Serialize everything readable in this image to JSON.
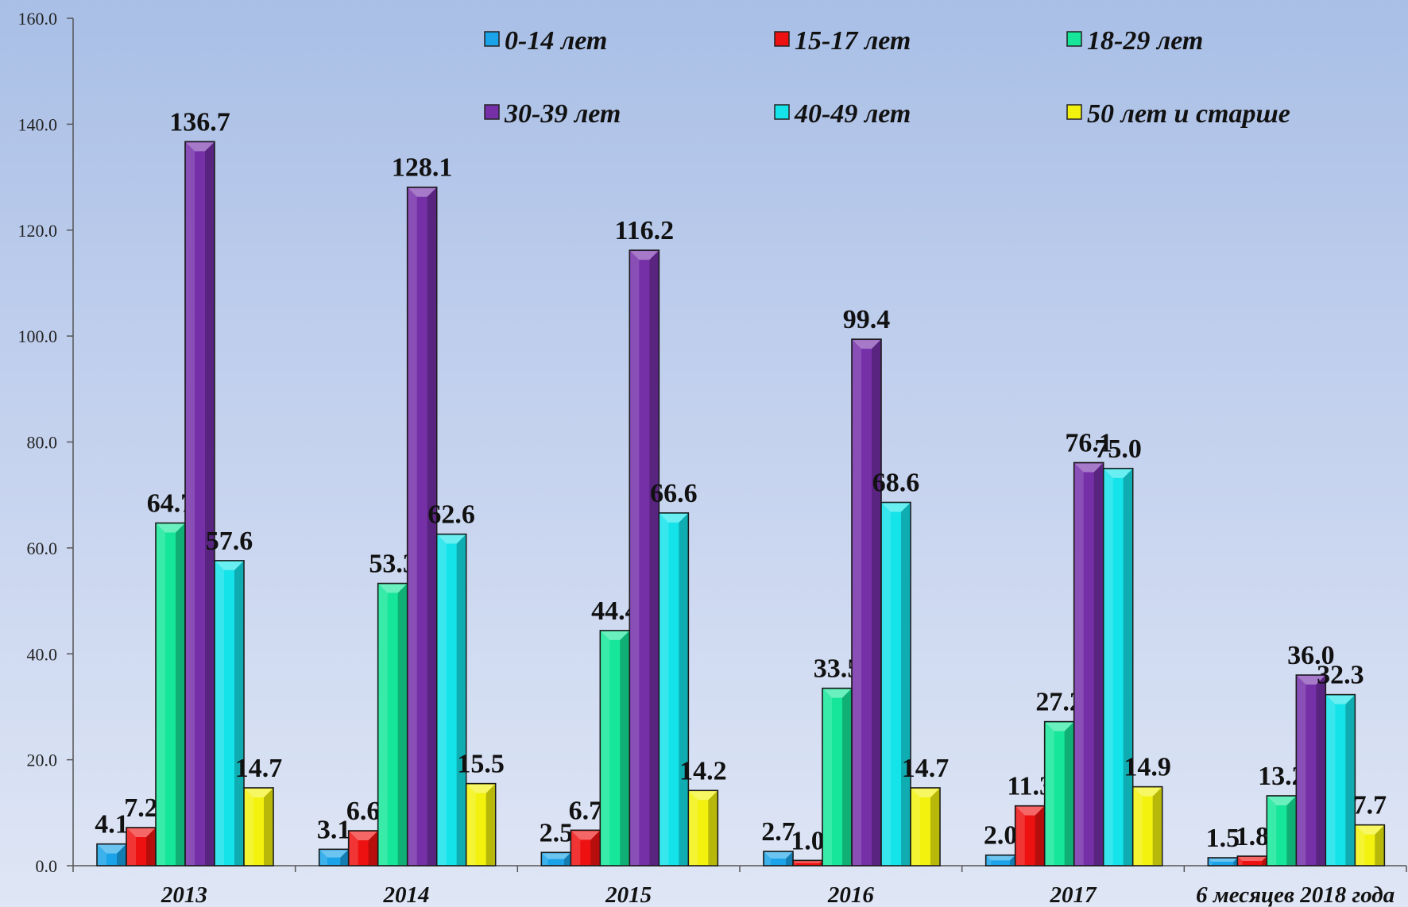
{
  "chart_data": {
    "type": "bar",
    "categories": [
      "2013",
      "2014",
      "2015",
      "2016",
      "2017",
      "6 месяцев 2018 года"
    ],
    "series": [
      {
        "name": "0-14 лет",
        "color": "#1aa3e8",
        "values": [
          4.1,
          3.1,
          2.5,
          2.7,
          2.0,
          1.5
        ]
      },
      {
        "name": "15-17 лет",
        "color": "#ee1111",
        "values": [
          7.2,
          6.6,
          6.7,
          1.0,
          11.3,
          1.8
        ]
      },
      {
        "name": "18-29 лет",
        "color": "#15e69a",
        "values": [
          64.7,
          53.3,
          44.4,
          33.5,
          27.2,
          13.2
        ]
      },
      {
        "name": "30-39 лет",
        "color": "#7530a8",
        "values": [
          136.7,
          128.1,
          116.2,
          99.4,
          76.1,
          36.0
        ]
      },
      {
        "name": "40-49 лет",
        "color": "#14e3ea",
        "values": [
          57.6,
          62.6,
          66.6,
          68.6,
          75.0,
          32.3
        ]
      },
      {
        "name": "50 лет и старше",
        "color": "#f2f20e",
        "values": [
          14.7,
          15.5,
          14.2,
          14.7,
          14.9,
          7.7
        ]
      }
    ],
    "data_labels": [
      [
        "4.1",
        "7.2",
        "64.7",
        "136.7",
        "57.6",
        "14.7"
      ],
      [
        "3.1",
        "6.6",
        "53.3",
        "128.1",
        "62.6",
        "15.5"
      ],
      [
        "2.5",
        "6.7",
        "44.4",
        "116.2",
        "66.6",
        "14.2"
      ],
      [
        "2.7",
        "1.0",
        "33.5",
        "99.4",
        "68.6",
        "14.7"
      ],
      [
        "2.0",
        "11.3",
        "27.2",
        "76.1",
        "75.0",
        "14.9"
      ],
      [
        "1.5",
        "1.8",
        "13.2",
        "36.0",
        "32.3",
        "7.7"
      ]
    ],
    "y_ticks": [
      "0.0",
      "20.0",
      "40.0",
      "60.0",
      "80.0",
      "100.0",
      "120.0",
      "140.0",
      "160.0"
    ],
    "ylim": [
      0,
      160
    ],
    "xlabel": "",
    "ylabel": "",
    "grid": false,
    "legend_position": "top"
  }
}
